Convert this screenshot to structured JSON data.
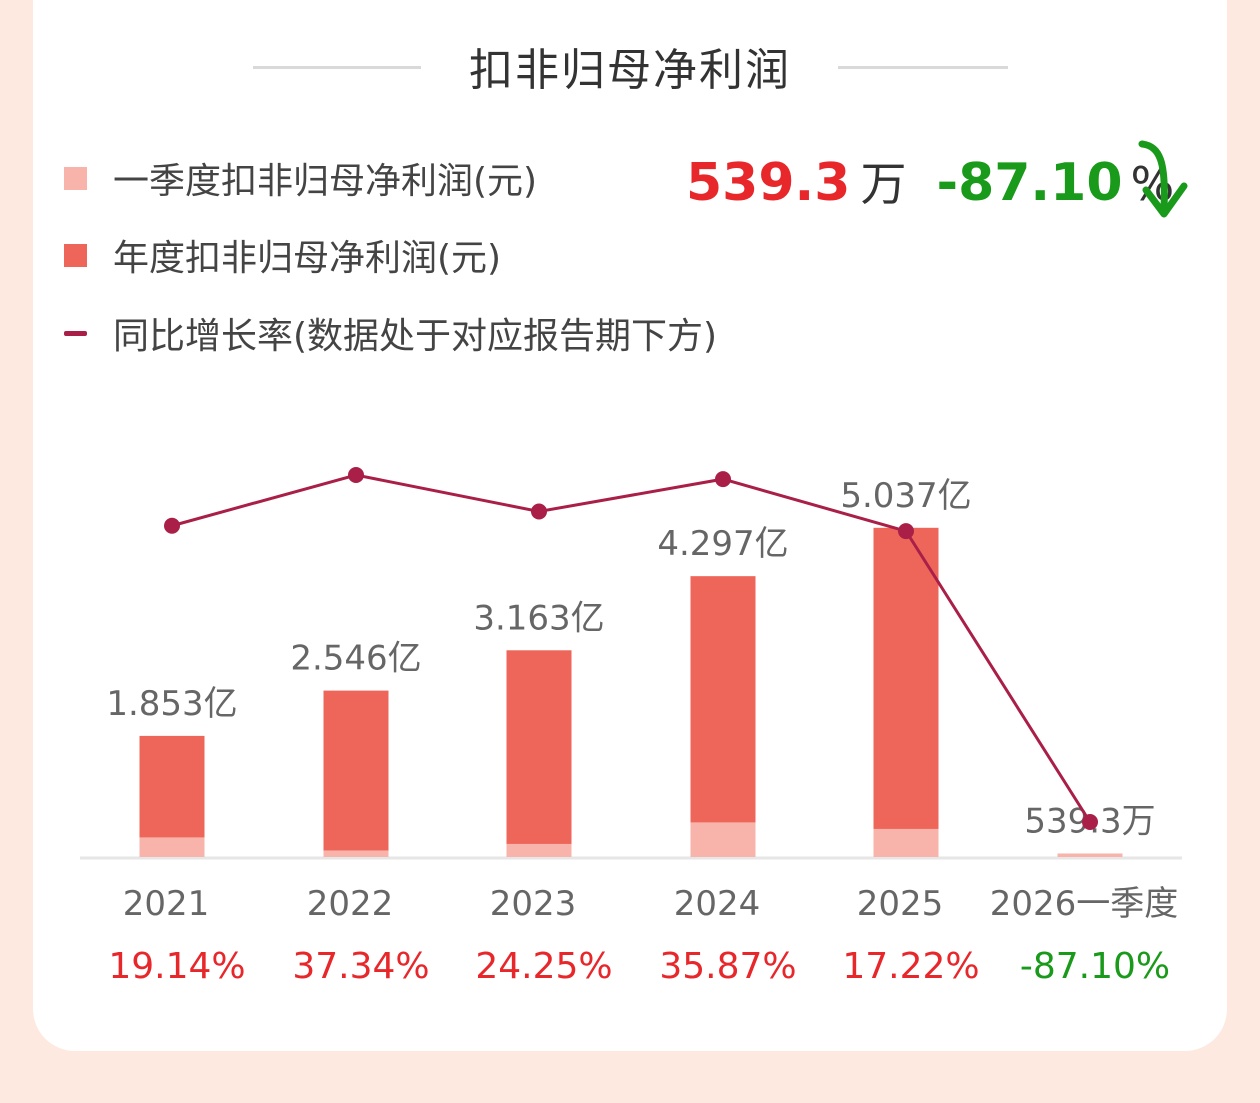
{
  "title": "扣非归母净利润",
  "legend": [
    {
      "label": "一季度扣非归母净利润(元)",
      "color": "#f8b4aa",
      "shape": "square"
    },
    {
      "label": "年度扣非归母净利润(元)",
      "color": "#ee665a",
      "shape": "square"
    },
    {
      "label": "同比增长率(数据处于对应报告期下方)",
      "color": "#a91f47",
      "shape": "line"
    }
  ],
  "headline": {
    "value": "539.3",
    "unit": "万",
    "change": "-87.10",
    "change_unit": "%",
    "value_color": "#e8272b",
    "change_color": "#1a9a1a",
    "arrow_icon": "down-arrow-icon"
  },
  "chart_data": {
    "type": "bar",
    "categories": [
      "2021",
      "2022",
      "2023",
      "2024",
      "2025",
      "2026一季度"
    ],
    "series": [
      {
        "name": "年度扣非归母净利润(元)",
        "values_yi": [
          1.853,
          2.546,
          3.163,
          4.297,
          5.037,
          null
        ]
      },
      {
        "name": "一季度扣非归母净利润(元)",
        "values_yi": [
          0.3,
          0.1,
          0.2,
          0.53,
          0.43,
          0.05393
        ]
      },
      {
        "name": "同比增长率",
        "type": "line",
        "values_pct": [
          19.14,
          37.34,
          24.25,
          35.87,
          17.22,
          -87.1
        ]
      }
    ],
    "bar_labels": [
      "1.853亿",
      "2.546亿",
      "3.163亿",
      "4.297亿",
      "5.037亿",
      "539.3万"
    ],
    "growth_labels": [
      "19.14%",
      "37.34%",
      "24.25%",
      "35.87%",
      "17.22%",
      "-87.10%"
    ],
    "growth_colors": [
      "#e8272b",
      "#e8272b",
      "#e8272b",
      "#e8272b",
      "#e8272b",
      "#1a9a1a"
    ],
    "ylim": [
      0,
      5.6
    ],
    "grid": false,
    "legend_position": "top-left",
    "colors": {
      "annual": "#ee665a",
      "quarter": "#f8b4aa",
      "line": "#a91f47",
      "axis": "#e6e6e6",
      "label": "#666666"
    }
  }
}
